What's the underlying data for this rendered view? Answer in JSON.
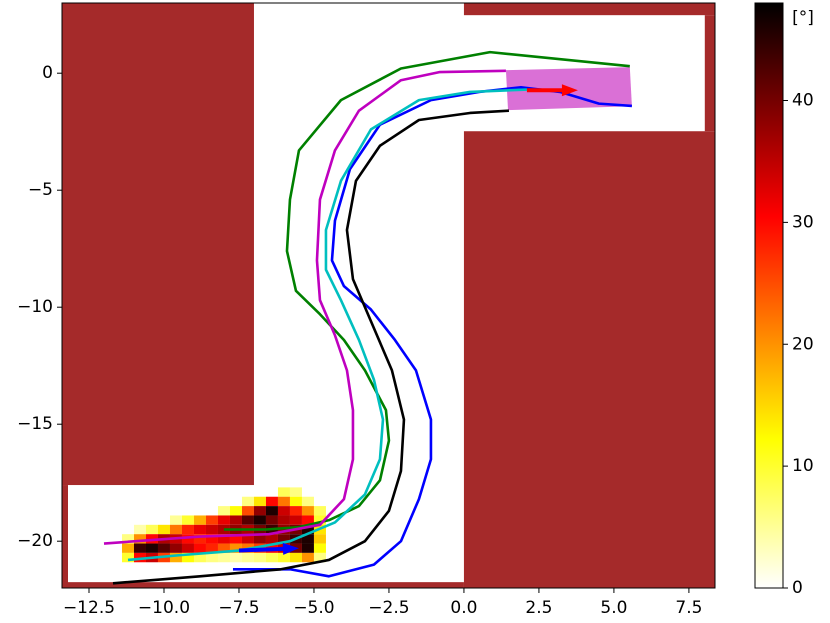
{
  "chart_data": {
    "type": "line",
    "xlim": [
      -13.4,
      8.37
    ],
    "ylim": [
      -22,
      3
    ],
    "xticks": [
      {
        "value": -12.5,
        "label": "−12.5"
      },
      {
        "value": -10,
        "label": "−10.0"
      },
      {
        "value": -7.5,
        "label": "−7.5"
      },
      {
        "value": -5,
        "label": "−5.0"
      },
      {
        "value": -2.5,
        "label": "−2.5"
      },
      {
        "value": 0,
        "label": "0.0"
      },
      {
        "value": 2.5,
        "label": "2.5"
      },
      {
        "value": 5,
        "label": "5.0"
      },
      {
        "value": 7.5,
        "label": "7.5"
      }
    ],
    "yticks": [
      0,
      {
        "value": -5,
        "label": "−5"
      },
      {
        "value": -10,
        "label": "−10"
      },
      {
        "value": -15,
        "label": "−15"
      },
      {
        "value": -20,
        "label": "−20"
      }
    ],
    "obstacle_color": "#a52a2a",
    "obstacles": [
      [
        -13.4,
        -7,
        -17.6,
        3
      ],
      [
        -13.4,
        -13.2,
        -22,
        -17.6
      ],
      [
        -13.2,
        0,
        -22,
        -21.75
      ],
      [
        0,
        8.37,
        -22,
        -2.48
      ],
      [
        0,
        8.37,
        2.48,
        3
      ],
      [
        8.03,
        8.37,
        -2.48,
        2.48
      ]
    ],
    "goal": {
      "color": "#da70d6",
      "x": [
        1.4,
        5.53,
        5.6,
        1.47
      ],
      "y": [
        0.13,
        0.26,
        -1.41,
        -1.58
      ]
    },
    "heat": {
      "x": [
        -6.0,
        -5.6,
        -7.2,
        -6.8,
        -6.4,
        -6.0,
        -5.6,
        -5.2,
        -8.0,
        -7.6,
        -7.2,
        -6.8,
        -6.4,
        -6.0,
        -5.6,
        -5.2,
        -4.8,
        -9.6,
        -9.2,
        -8.8,
        -8.4,
        -8.0,
        -7.6,
        -7.2,
        -6.8,
        -6.4,
        -6.0,
        -5.6,
        -5.2,
        -4.8,
        -10.8,
        -10.4,
        -10.0,
        -9.6,
        -9.2,
        -8.8,
        -8.4,
        -8.0,
        -7.6,
        -7.2,
        -6.8,
        -6.4,
        -6.0,
        -5.6,
        -5.2,
        -4.8,
        -11.2,
        -10.8,
        -10.4,
        -10.0,
        -9.6,
        -9.2,
        -8.8,
        -8.4,
        -8.0,
        -7.6,
        -7.2,
        -6.8,
        -6.4,
        -6.0,
        -5.6,
        -5.2,
        -4.8,
        -11.2,
        -10.8,
        -10.4,
        -10.0,
        -9.6,
        -9.2,
        -8.8,
        -8.4,
        -8.0,
        -7.6,
        -7.2,
        -6.8,
        -6.4,
        -6.0,
        -5.6,
        -5.2,
        -4.8,
        -11.2,
        -10.8,
        -10.4,
        -10.0,
        -9.6,
        -9.2,
        -8.8,
        -8.4,
        -8.0,
        -7.6,
        -7.2,
        -6.8,
        -6.4,
        -6.0,
        -5.6,
        -5.2,
        -4.8
      ],
      "y": [
        -17.9,
        -17.9,
        -18.3,
        -18.3,
        -18.3,
        -18.3,
        -18.3,
        -18.3,
        -18.7,
        -18.7,
        -18.7,
        -18.7,
        -18.7,
        -18.7,
        -18.7,
        -18.7,
        -18.7,
        -19.1,
        -19.1,
        -19.1,
        -19.1,
        -19.1,
        -19.1,
        -19.1,
        -19.1,
        -19.1,
        -19.1,
        -19.1,
        -19.1,
        -19.1,
        -19.5,
        -19.5,
        -19.5,
        -19.5,
        -19.5,
        -19.5,
        -19.5,
        -19.5,
        -19.5,
        -19.5,
        -19.5,
        -19.5,
        -19.5,
        -19.5,
        -19.5,
        -19.5,
        -19.9,
        -19.9,
        -19.9,
        -19.9,
        -19.9,
        -19.9,
        -19.9,
        -19.9,
        -19.9,
        -19.9,
        -19.9,
        -19.9,
        -19.9,
        -19.9,
        -19.9,
        -19.9,
        -19.9,
        -20.3,
        -20.3,
        -20.3,
        -20.3,
        -20.3,
        -20.3,
        -20.3,
        -20.3,
        -20.3,
        -20.3,
        -20.3,
        -20.3,
        -20.3,
        -20.3,
        -20.3,
        -20.3,
        -20.3,
        -20.7,
        -20.7,
        -20.7,
        -20.7,
        -20.7,
        -20.7,
        -20.7,
        -20.7,
        -20.7,
        -20.7,
        -20.7,
        -20.7,
        -20.7,
        -20.7,
        -20.7,
        -20.7,
        -20.7
      ],
      "values": [
        8,
        6,
        6,
        14,
        30,
        22,
        12,
        6,
        6,
        12,
        25,
        38,
        46,
        34,
        28,
        20,
        8,
        5,
        10,
        18,
        26,
        32,
        36,
        42,
        46,
        40,
        36,
        34,
        30,
        10,
        4,
        8,
        14,
        22,
        28,
        32,
        34,
        36,
        38,
        36,
        40,
        44,
        38,
        40,
        46,
        14,
        6,
        20,
        30,
        36,
        34,
        30,
        28,
        30,
        32,
        30,
        34,
        38,
        36,
        40,
        44,
        46,
        16,
        18,
        44,
        46,
        42,
        38,
        34,
        30,
        28,
        24,
        20,
        22,
        26,
        30,
        34,
        40,
        46,
        12,
        10,
        30,
        34,
        26,
        18,
        12,
        8,
        6,
        5,
        4,
        5,
        6,
        8,
        10,
        14,
        20,
        6
      ]
    },
    "series": [
      {
        "color": "#008000",
        "x": [
          5.53,
          0.87,
          -2.1,
          -4.1,
          -5.5,
          -5.8,
          -5.9,
          -5.6,
          -4.8,
          -4.0,
          -3.3,
          -2.6,
          -2.5,
          -2.8,
          -3.5,
          -4.5,
          -5.5,
          -6.6,
          -8.0
        ],
        "y": [
          0.3,
          0.9,
          0.2,
          -1.15,
          -3.3,
          -5.4,
          -7.6,
          -9.3,
          -10.3,
          -11.4,
          -12.7,
          -14.4,
          -15.7,
          -17.4,
          -18.5,
          -19.1,
          -19.4,
          -19.5,
          -19.5
        ]
      },
      {
        "color": "#bf00bf",
        "x": [
          1.4,
          -0.8,
          -2.1,
          -3.5,
          -4.3,
          -4.8,
          -4.9,
          -4.8,
          -4.3,
          -3.9,
          -3.7,
          -3.7,
          -4.0,
          -4.8,
          -6.5,
          -8.8,
          -12.0
        ],
        "y": [
          0.1,
          0.05,
          -0.3,
          -1.6,
          -3.3,
          -5.4,
          -8.0,
          -9.7,
          -11.2,
          -12.7,
          -14.4,
          -16.5,
          -18.2,
          -19.3,
          -19.7,
          -19.8,
          -20.1
        ]
      },
      {
        "color": "#0000ff",
        "x": [
          5.6,
          4.5,
          3.2,
          1.9,
          0.5,
          -1.1,
          -2.8,
          -3.8,
          -4.3,
          -4.4,
          -4.0,
          -3.1,
          -2.3,
          -1.6,
          -1.1,
          -1.1,
          -1.5,
          -2.1,
          -3.0,
          -4.5,
          -5.8,
          -7.7
        ],
        "y": [
          -1.4,
          -1.3,
          -0.8,
          -0.6,
          -0.8,
          -1.15,
          -2.2,
          -4.1,
          -6.3,
          -8.0,
          -9.1,
          -10.1,
          -11.4,
          -12.7,
          -14.8,
          -16.5,
          -18.2,
          -20.0,
          -21.0,
          -21.5,
          -21.2,
          -21.2
        ]
      },
      {
        "color": "#00bfbf",
        "x": [
          2.1,
          0.2,
          -1.5,
          -3.1,
          -4.1,
          -4.6,
          -4.6,
          -4.1,
          -3.5,
          -3.0,
          -2.7,
          -2.8,
          -3.3,
          -4.3,
          -5.8,
          -7.5,
          -9.5,
          -11.2
        ],
        "y": [
          -0.7,
          -0.8,
          -1.15,
          -2.4,
          -4.6,
          -6.7,
          -8.4,
          -9.7,
          -11.4,
          -13.1,
          -14.8,
          -16.5,
          -18.0,
          -19.2,
          -20.0,
          -20.4,
          -20.6,
          -20.8
        ]
      },
      {
        "color": "#000000",
        "x": [
          1.5,
          0.2,
          -1.5,
          -2.8,
          -3.6,
          -3.9,
          -3.7,
          -3.1,
          -2.4,
          -2.0,
          -2.1,
          -2.5,
          -3.3,
          -4.5,
          -6.1,
          -8.8,
          -11.7
        ],
        "y": [
          -1.6,
          -1.7,
          -2.0,
          -3.1,
          -4.6,
          -6.7,
          -8.8,
          -10.6,
          -12.7,
          -14.8,
          -17.0,
          -18.7,
          -20.0,
          -20.8,
          -21.2,
          -21.5,
          -21.8
        ]
      }
    ],
    "arrows": [
      {
        "color": "#ff0000",
        "x": [
          2.1,
          3.8
        ],
        "y": [
          -0.73,
          -0.73
        ]
      },
      {
        "color": "#0000ff",
        "x": [
          -7.5,
          -5.5
        ],
        "y": [
          -20.4,
          -20.3
        ]
      }
    ],
    "colorbar": {
      "label": "[°]",
      "lim": [
        0,
        48
      ],
      "ticks": [
        0,
        10,
        20,
        30,
        40
      ],
      "stops": [
        [
          0,
          "#ffffff"
        ],
        [
          0.254,
          "#ffff00"
        ],
        [
          0.635,
          "#ff0000"
        ],
        [
          1,
          "#000000"
        ]
      ]
    }
  }
}
